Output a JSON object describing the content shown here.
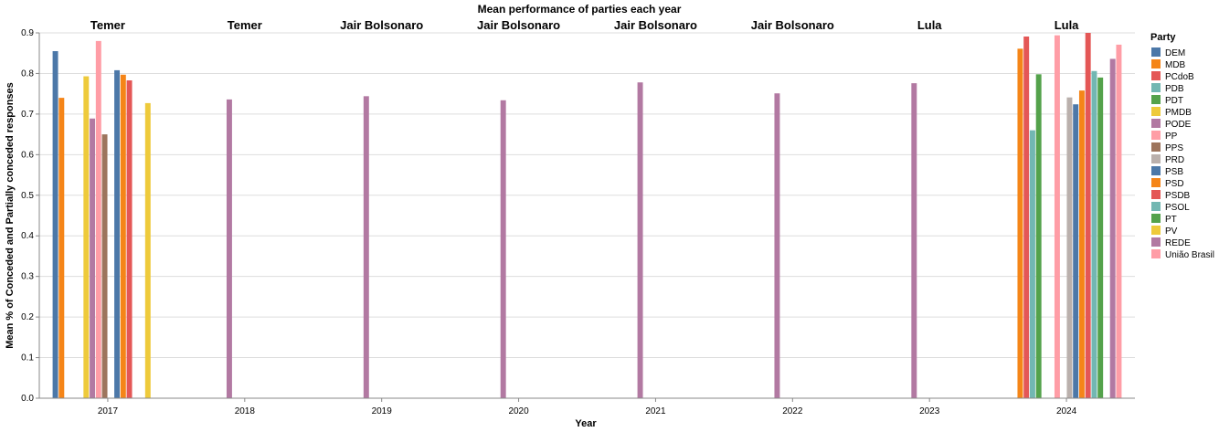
{
  "chart_data": {
    "type": "bar",
    "title": "Mean performance of parties each year",
    "xlabel": "Year",
    "ylabel": "Mean % of Conceded and Partially conceded responses",
    "ylim": [
      0,
      0.9
    ],
    "yticks": [
      "0.0",
      "0.1",
      "0.2",
      "0.3",
      "0.4",
      "0.5",
      "0.6",
      "0.7",
      "0.8",
      "0.9"
    ],
    "grid": true,
    "legend_title": "Party",
    "legend_position": "right",
    "parties": [
      {
        "name": "DEM",
        "color": "#4c78a8"
      },
      {
        "name": "MDB",
        "color": "#f58518"
      },
      {
        "name": "PCdoB",
        "color": "#e45756"
      },
      {
        "name": "PDB",
        "color": "#72b7b2"
      },
      {
        "name": "PDT",
        "color": "#54a24b"
      },
      {
        "name": "PMDB",
        "color": "#eeca3b"
      },
      {
        "name": "PODE",
        "color": "#b279a2"
      },
      {
        "name": "PP",
        "color": "#ff9da6"
      },
      {
        "name": "PPS",
        "color": "#9d755d"
      },
      {
        "name": "PRD",
        "color": "#bab0ac"
      },
      {
        "name": "PSB",
        "color": "#4c78a8"
      },
      {
        "name": "PSD",
        "color": "#f58518"
      },
      {
        "name": "PSDB",
        "color": "#e45756"
      },
      {
        "name": "PSOL",
        "color": "#72b7b2"
      },
      {
        "name": "PT",
        "color": "#54a24b"
      },
      {
        "name": "PV",
        "color": "#eeca3b"
      },
      {
        "name": "REDE",
        "color": "#b279a2"
      },
      {
        "name": "União Brasil",
        "color": "#ff9da6"
      }
    ],
    "years": [
      {
        "year": "2017",
        "president": "Temer",
        "values": {
          "DEM": 0.855,
          "MDB": 0.74,
          "PMDB": 0.793,
          "PODE": 0.689,
          "PP": 0.88,
          "PPS": 0.65,
          "PSB": 0.808,
          "PSD": 0.797,
          "PSDB": 0.783,
          "PV": 0.727
        }
      },
      {
        "year": "2018",
        "president": "Temer",
        "values": {
          "PODE": 0.736
        }
      },
      {
        "year": "2019",
        "president": "Jair Bolsonaro",
        "values": {
          "PODE": 0.744
        }
      },
      {
        "year": "2020",
        "president": "Jair Bolsonaro",
        "values": {
          "PODE": 0.734
        }
      },
      {
        "year": "2021",
        "president": "Jair Bolsonaro",
        "values": {
          "PODE": 0.778
        }
      },
      {
        "year": "2022",
        "president": "Jair Bolsonaro",
        "values": {
          "PODE": 0.751
        }
      },
      {
        "year": "2023",
        "president": "Lula",
        "values": {
          "PODE": 0.776
        }
      },
      {
        "year": "2024",
        "president": "Lula",
        "values": {
          "MDB": 0.861,
          "PCdoB": 0.891,
          "PDB": 0.66,
          "PDT": 0.798,
          "PP": 0.894,
          "PRD": 0.741,
          "PSB": 0.724,
          "PSD": 0.758,
          "PSDB": 0.9,
          "PSOL": 0.806,
          "PT": 0.79,
          "REDE": 0.836,
          "União Brasil": 0.871
        }
      }
    ]
  }
}
